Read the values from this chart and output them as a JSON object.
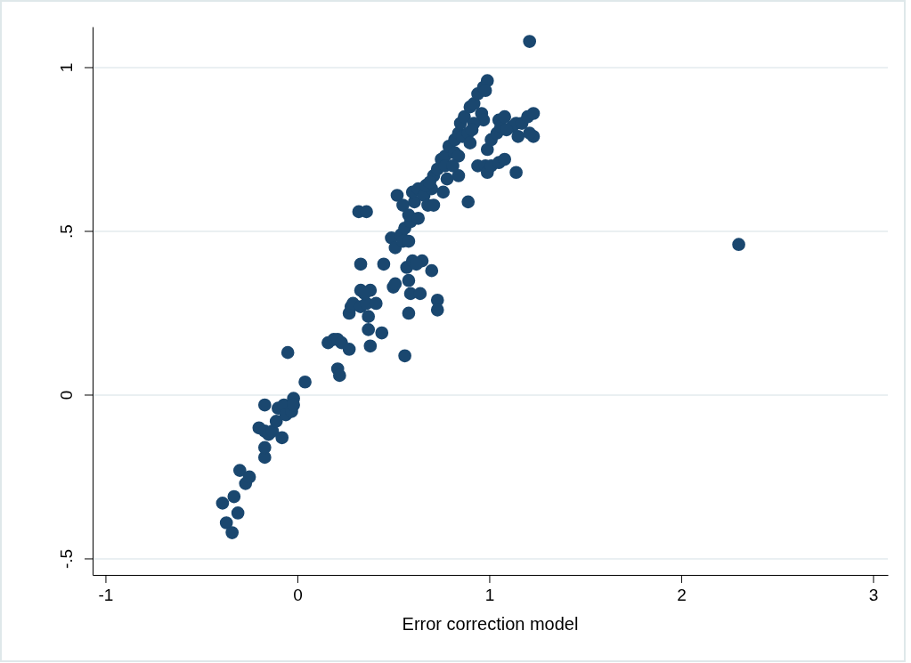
{
  "chart_data": {
    "type": "scatter",
    "xlabel": "Error correction model",
    "xlim": [
      -1.067,
      3.077
    ],
    "ylim": [
      -0.549,
      1.125
    ],
    "xticks": [
      -1,
      0,
      1,
      2,
      3
    ],
    "yticks": [
      {
        "value": -0.5,
        "label": "-.5"
      },
      0,
      {
        "value": 0.5,
        "label": ".5"
      },
      1
    ],
    "grid": "y",
    "marker": "circle",
    "series": [
      {
        "color": "#1a476f",
        "x": [
          -0.39,
          -0.37,
          -0.34,
          -0.33,
          -0.31,
          -0.3,
          -0.27,
          -0.25,
          -0.2,
          -0.17,
          -0.17,
          -0.17,
          -0.17,
          -0.15,
          -0.13,
          -0.11,
          -0.1,
          -0.07,
          -0.08,
          -0.06,
          -0.03,
          -0.02,
          -0.02,
          -0.05,
          0.04,
          0.16,
          0.19,
          0.21,
          0.23,
          0.27,
          0.21,
          0.22,
          0.27,
          0.28,
          0.29,
          0.33,
          0.33,
          0.36,
          0.38,
          0.35,
          0.32,
          0.36,
          0.33,
          0.37,
          0.37,
          0.38,
          0.41,
          0.44,
          0.45,
          0.5,
          0.51,
          0.56,
          0.58,
          0.59,
          0.64,
          0.7,
          0.73,
          0.73,
          0.58,
          0.57,
          0.6,
          0.65,
          0.62,
          0.49,
          0.51,
          0.54,
          0.56,
          0.55,
          0.58,
          0.59,
          0.52,
          0.55,
          0.58,
          0.61,
          0.6,
          0.63,
          0.66,
          0.68,
          0.7,
          0.63,
          0.76,
          0.71,
          0.89,
          0.84,
          0.71,
          0.73,
          0.75,
          0.77,
          0.79,
          0.82,
          0.84,
          0.85,
          0.87,
          0.9,
          0.92,
          0.94,
          0.97,
          0.99,
          0.98,
          0.96,
          0.97,
          0.77,
          0.82,
          0.86,
          0.89,
          0.92,
          0.9,
          0.84,
          0.67,
          0.69,
          0.78,
          0.81,
          0.91,
          0.99,
          0.94,
          0.98,
          0.99,
          1.01,
          1.05,
          1.08,
          1.14,
          1.01,
          1.04,
          1.05,
          1.06,
          1.08,
          1.12,
          1.14,
          1.15,
          1.17,
          1.2,
          1.23,
          1.23,
          1.21,
          1.09,
          1.21,
          2.3
        ],
        "values": [
          -0.33,
          -0.39,
          -0.42,
          -0.31,
          -0.36,
          -0.23,
          -0.27,
          -0.25,
          -0.1,
          -0.11,
          -0.19,
          -0.16,
          -0.03,
          -0.12,
          -0.11,
          -0.08,
          -0.04,
          -0.03,
          -0.13,
          -0.06,
          -0.05,
          -0.01,
          -0.03,
          0.13,
          0.04,
          0.16,
          0.17,
          0.17,
          0.16,
          0.14,
          0.08,
          0.06,
          0.25,
          0.27,
          0.28,
          0.27,
          0.32,
          0.28,
          0.32,
          0.31,
          0.56,
          0.56,
          0.4,
          0.24,
          0.2,
          0.15,
          0.28,
          0.19,
          0.4,
          0.33,
          0.34,
          0.12,
          0.25,
          0.31,
          0.31,
          0.38,
          0.29,
          0.26,
          0.35,
          0.39,
          0.41,
          0.41,
          0.4,
          0.48,
          0.45,
          0.49,
          0.51,
          0.47,
          0.47,
          0.53,
          0.61,
          0.58,
          0.55,
          0.59,
          0.62,
          0.63,
          0.61,
          0.58,
          0.63,
          0.54,
          0.62,
          0.58,
          0.59,
          0.67,
          0.67,
          0.69,
          0.72,
          0.73,
          0.76,
          0.78,
          0.8,
          0.83,
          0.85,
          0.88,
          0.89,
          0.92,
          0.94,
          0.96,
          0.93,
          0.86,
          0.84,
          0.7,
          0.74,
          0.79,
          0.8,
          0.83,
          0.77,
          0.73,
          0.64,
          0.65,
          0.66,
          0.7,
          0.81,
          0.75,
          0.7,
          0.7,
          0.68,
          0.7,
          0.71,
          0.72,
          0.68,
          0.78,
          0.8,
          0.84,
          0.82,
          0.85,
          0.82,
          0.83,
          0.79,
          0.83,
          0.85,
          0.86,
          0.79,
          0.8,
          0.81,
          1.08,
          0.46
        ]
      }
    ]
  }
}
